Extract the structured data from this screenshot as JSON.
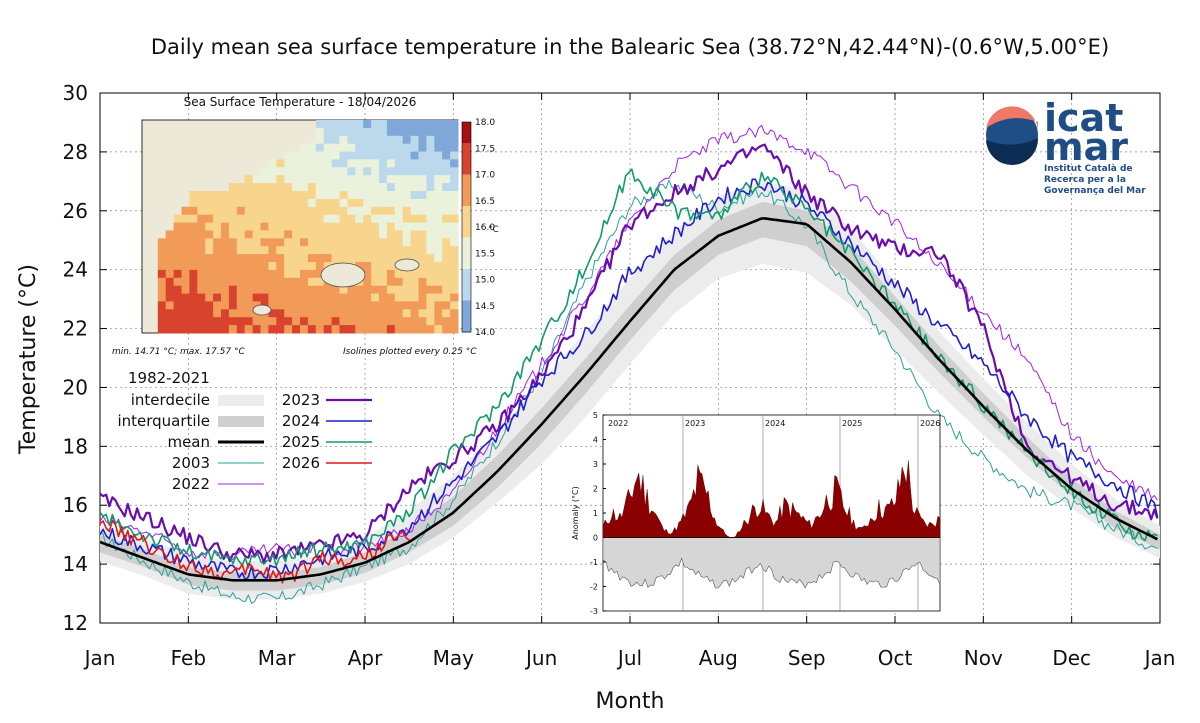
{
  "chart_data": {
    "type": "line",
    "title": "Daily mean sea surface temperature in the Balearic Sea (38.72°N,42.44°N)-(0.6°W,5.00°E)",
    "xlabel": "Month",
    "ylabel": "Temperature (°C)",
    "ylim": [
      12,
      30
    ],
    "xlim": [
      0,
      12
    ],
    "yticks": [
      "12",
      "14",
      "16",
      "18",
      "20",
      "22",
      "24",
      "26",
      "28",
      "30"
    ],
    "months": [
      "Jan",
      "Feb",
      "Mar",
      "Apr",
      "May",
      "Jun",
      "Jul",
      "Aug",
      "Sep",
      "Oct",
      "Nov",
      "Dec",
      "Jan"
    ],
    "grid": true,
    "legend_placement": "left",
    "climatology_label": "1982-2021",
    "bands": {
      "x": [
        0,
        0.5,
        1,
        1.5,
        2,
        2.5,
        3,
        3.5,
        4,
        4.5,
        5,
        5.5,
        6,
        6.5,
        7,
        7.5,
        8,
        8.5,
        9,
        9.5,
        10,
        10.5,
        11,
        11.5,
        12
      ],
      "p10": [
        14.1,
        13.6,
        13.0,
        12.8,
        12.8,
        13.0,
        13.4,
        14.0,
        14.9,
        16.1,
        17.4,
        19.0,
        20.8,
        22.5,
        23.7,
        24.2,
        23.9,
        22.8,
        21.3,
        19.8,
        18.4,
        17.0,
        15.9,
        14.9,
        14.2
      ],
      "p25": [
        14.4,
        13.9,
        13.3,
        13.1,
        13.1,
        13.3,
        13.7,
        14.4,
        15.3,
        16.6,
        18.1,
        19.8,
        21.6,
        23.3,
        24.5,
        25.1,
        24.8,
        23.6,
        22.1,
        20.5,
        19.0,
        17.6,
        16.3,
        15.2,
        14.5
      ],
      "p75": [
        15.0,
        14.5,
        13.9,
        13.7,
        13.7,
        13.9,
        14.4,
        15.2,
        16.3,
        17.7,
        19.3,
        21.0,
        22.8,
        24.5,
        25.7,
        26.3,
        26.0,
        24.8,
        23.1,
        21.4,
        19.8,
        18.3,
        16.9,
        15.8,
        15.0
      ],
      "p90": [
        15.3,
        14.9,
        14.3,
        14.1,
        14.1,
        14.3,
        14.9,
        15.8,
        17.0,
        18.5,
        20.2,
        21.9,
        23.7,
        25.3,
        26.5,
        27.0,
        26.7,
        25.4,
        23.6,
        21.9,
        20.3,
        18.8,
        17.4,
        16.2,
        15.3
      ],
      "mean": [
        14.75,
        14.2,
        13.65,
        13.45,
        13.45,
        13.65,
        14.05,
        14.75,
        15.75,
        17.15,
        18.75,
        20.45,
        22.25,
        24.0,
        25.15,
        25.75,
        25.55,
        24.25,
        22.65,
        20.95,
        19.35,
        17.85,
        16.55,
        15.55,
        14.8
      ]
    },
    "legend": [
      {
        "label": "interdecile",
        "type": "band",
        "color": "#eeeeee"
      },
      {
        "label": "interquartile",
        "type": "band",
        "color": "#cccccc"
      },
      {
        "label": "mean",
        "type": "line",
        "color": "#000000",
        "width": 3
      },
      {
        "label": "2003",
        "type": "line",
        "color": "#2aa198",
        "width": 1
      },
      {
        "label": "2022",
        "type": "line",
        "color": "#a020f0",
        "width": 1
      },
      {
        "label": "2023",
        "type": "line",
        "color": "#6a0dad",
        "width": 2.2
      },
      {
        "label": "2024",
        "type": "line",
        "color": "#1f1fd0",
        "width": 1.6
      },
      {
        "label": "2025",
        "type": "line",
        "color": "#129a6b",
        "width": 1.6
      },
      {
        "label": "2026",
        "type": "line",
        "color": "#e01818",
        "width": 1.6
      }
    ],
    "series": [
      {
        "name": "2003",
        "color": "#2aa198",
        "width": 1,
        "x": [
          0,
          0.5,
          1,
          1.5,
          2,
          2.5,
          3,
          3.5,
          4,
          4.5,
          5,
          5.5,
          6,
          6.5,
          7,
          7.5,
          8,
          8.5,
          9,
          9.5,
          10,
          10.5,
          11,
          11.5,
          12
        ],
        "values": [
          14.9,
          14.1,
          13.4,
          12.9,
          12.8,
          13.3,
          13.9,
          14.6,
          16.2,
          18.2,
          20.5,
          23.6,
          26.2,
          26.9,
          26.1,
          26.7,
          25.5,
          23.2,
          21.3,
          19.0,
          17.6,
          16.5,
          16.0,
          15.2,
          14.5
        ]
      },
      {
        "name": "2022",
        "color": "#a020f0",
        "width": 1,
        "x": [
          0,
          0.5,
          1,
          1.5,
          2,
          2.5,
          3,
          3.5,
          4,
          4.5,
          5,
          5.5,
          6,
          6.5,
          7,
          7.5,
          8,
          8.5,
          9,
          9.5,
          10,
          10.5,
          11,
          11.5,
          12
        ],
        "values": [
          15.5,
          15.1,
          14.4,
          14.3,
          14.5,
          14.4,
          14.6,
          15.2,
          16.4,
          18.6,
          20.8,
          23.1,
          25.6,
          27.5,
          28.4,
          28.7,
          28.1,
          26.8,
          25.6,
          24.1,
          22.6,
          20.9,
          18.4,
          16.9,
          16.2
        ]
      },
      {
        "name": "2023",
        "color": "#6a0dad",
        "width": 2.2,
        "x": [
          0,
          0.5,
          1,
          1.5,
          2,
          2.5,
          3,
          3.5,
          4,
          4.5,
          5,
          5.5,
          6,
          6.5,
          7,
          7.5,
          8,
          8.5,
          9,
          9.5,
          10,
          10.5,
          11,
          11.5,
          12
        ],
        "values": [
          16.2,
          15.6,
          14.9,
          14.3,
          14.3,
          14.6,
          15.0,
          16.6,
          17.6,
          18.7,
          20.4,
          22.7,
          25.6,
          26.6,
          27.4,
          28.2,
          26.6,
          25.4,
          24.7,
          24.6,
          22.0,
          18.0,
          16.9,
          16.0,
          15.7
        ]
      },
      {
        "name": "2024",
        "color": "#1f1fd0",
        "width": 1.6,
        "x": [
          0,
          0.5,
          1,
          1.5,
          2,
          2.5,
          3,
          3.5,
          4,
          4.5,
          5,
          5.5,
          6,
          6.5,
          7,
          7.5,
          8,
          8.5,
          9,
          9.5,
          10,
          10.5,
          11,
          11.5,
          12
        ],
        "values": [
          15.1,
          14.6,
          14.1,
          13.7,
          13.8,
          14.2,
          14.5,
          15.3,
          16.8,
          18.3,
          20.3,
          21.8,
          23.9,
          25.2,
          26.4,
          27.0,
          26.2,
          24.9,
          23.5,
          22.1,
          20.8,
          19.0,
          17.6,
          16.7,
          15.8
        ]
      },
      {
        "name": "2025",
        "color": "#129a6b",
        "width": 1.6,
        "x": [
          0,
          0.5,
          1,
          1.5,
          2,
          2.5,
          3,
          3.5,
          4,
          4.5,
          5,
          5.5,
          6,
          6.5,
          7,
          7.5,
          8,
          8.5,
          9,
          9.5,
          10,
          10.5,
          11,
          11.5,
          12
        ],
        "values": [
          15.6,
          15.0,
          14.4,
          14.1,
          14.2,
          14.5,
          14.7,
          15.8,
          17.8,
          19.4,
          21.6,
          24.1,
          27.4,
          26.0,
          25.8,
          27.2,
          26.0,
          24.5,
          22.8,
          21.0,
          19.4,
          17.8,
          16.5,
          15.4,
          14.7
        ]
      },
      {
        "name": "2026",
        "color": "#e01818",
        "width": 1.6,
        "x": [
          0,
          0.25,
          0.5,
          0.75,
          1,
          1.25,
          1.5,
          1.75,
          2,
          2.25,
          2.5,
          2.75,
          3,
          3.25,
          3.5
        ],
        "values": [
          15.5,
          15.0,
          14.7,
          14.2,
          14.0,
          13.8,
          13.6,
          13.9,
          13.6,
          13.7,
          14.3,
          14.1,
          14.3,
          14.8,
          15.0
        ]
      }
    ],
    "map_inset": {
      "title": "Sea Surface Temperature - 18/04/2026",
      "colorbar_ticks": [
        "18.0",
        "17.5",
        "17.0",
        "16.5",
        "16.0",
        "15.5",
        "15.0",
        "14.5",
        "14.0"
      ],
      "colorbar_unit": "°C",
      "note_left": "min. 14.71 °C; max. 17.57 °C",
      "note_right": "Isolines plotted every 0.25 °C"
    },
    "anomaly_inset": {
      "ylabel": "Anomaly (°C)",
      "ylim": [
        -3,
        5
      ],
      "yticks": [
        "5",
        "4",
        "3",
        "2",
        "1",
        "0",
        "-1",
        "-2",
        "-3"
      ],
      "years": [
        "2022",
        "2023",
        "2024",
        "2025",
        "2026"
      ],
      "anomaly": [
        0.4,
        1.0,
        0.8,
        1.5,
        2.6,
        1.7,
        1.0,
        0.3,
        0.2,
        0.6,
        1.2,
        2.3,
        1.8,
        0.7,
        0.2,
        -0.1,
        0.4,
        0.9,
        1.4,
        0.9,
        0.6,
        1.3,
        1.1,
        0.8,
        0.5,
        0.9,
        1.6,
        1.9,
        1.2,
        0.6,
        0.3,
        0.8,
        1.2,
        1.1,
        1.6,
        3.2,
        1.1,
        0.6,
        0.5,
        0.8
      ]
    }
  },
  "logo": {
    "name_line1": "icat",
    "name_line2": "mar",
    "sub1": "Institut Català de",
    "sub2": "Recerca per a la",
    "sub3": "Governança del Mar",
    "colors": {
      "top": "#f07868",
      "mid": "#1f4e86",
      "bottom": "#0e2d55"
    }
  }
}
